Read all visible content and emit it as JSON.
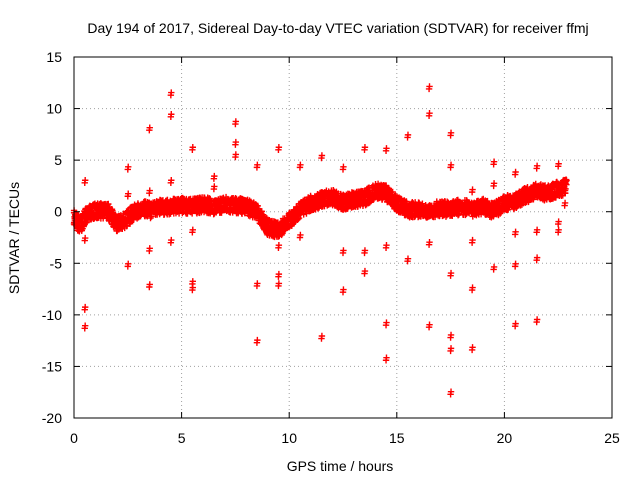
{
  "chart_data": {
    "type": "scatter",
    "title": "Day 194 of 2017, Sidereal Day-to-day VTEC variation (SDTVAR) for receiver ffmj",
    "xlabel": "GPS time / hours",
    "ylabel": "SDTVAR / TECUs",
    "xlim": [
      0,
      25
    ],
    "ylim": [
      -20,
      15
    ],
    "xticks": [
      "0",
      "5",
      "10",
      "15",
      "20",
      "25"
    ],
    "xtick_values": [
      0,
      5,
      10,
      15,
      20,
      25
    ],
    "yticks": [
      "15",
      "10",
      "5",
      "0",
      "-5",
      "-10",
      "-15",
      "-20"
    ],
    "ytick_values": [
      15,
      10,
      5,
      0,
      -5,
      -10,
      -15,
      -20
    ],
    "grid": true,
    "marker": "+",
    "color": "#ff0000",
    "series": [
      {
        "name": "SDTVAR",
        "band_profile": [
          [
            0.0,
            -0.6
          ],
          [
            0.3,
            -1.4
          ],
          [
            0.5,
            -0.5
          ],
          [
            0.8,
            0.0
          ],
          [
            1.2,
            0.1
          ],
          [
            1.6,
            0.0
          ],
          [
            2.0,
            -1.2
          ],
          [
            2.4,
            -0.8
          ],
          [
            2.8,
            0.0
          ],
          [
            3.2,
            0.3
          ],
          [
            3.6,
            0.1
          ],
          [
            4.0,
            0.4
          ],
          [
            4.5,
            0.5
          ],
          [
            5.0,
            0.6
          ],
          [
            5.5,
            0.5
          ],
          [
            6.0,
            0.7
          ],
          [
            6.5,
            0.5
          ],
          [
            7.0,
            0.7
          ],
          [
            7.5,
            0.6
          ],
          [
            8.0,
            0.5
          ],
          [
            8.5,
            0.0
          ],
          [
            9.0,
            -1.5
          ],
          [
            9.5,
            -1.8
          ],
          [
            10.0,
            -0.9
          ],
          [
            10.5,
            0.2
          ],
          [
            11.0,
            0.8
          ],
          [
            11.5,
            1.2
          ],
          [
            12.0,
            1.4
          ],
          [
            12.5,
            0.9
          ],
          [
            13.0,
            1.2
          ],
          [
            13.5,
            1.3
          ],
          [
            14.0,
            2.0
          ],
          [
            14.5,
            1.8
          ],
          [
            15.0,
            0.8
          ],
          [
            15.5,
            0.2
          ],
          [
            16.0,
            0.2
          ],
          [
            16.5,
            0.1
          ],
          [
            17.0,
            0.3
          ],
          [
            17.5,
            0.2
          ],
          [
            18.0,
            0.5
          ],
          [
            18.5,
            0.2
          ],
          [
            19.0,
            0.5
          ],
          [
            19.5,
            0.1
          ],
          [
            20.0,
            0.8
          ],
          [
            20.5,
            1.0
          ],
          [
            21.0,
            1.6
          ],
          [
            21.5,
            2.0
          ],
          [
            22.0,
            1.8
          ],
          [
            22.5,
            2.2
          ],
          [
            22.9,
            2.4
          ]
        ],
        "outliers": [
          [
            0.5,
            2.8
          ],
          [
            0.5,
            -2.8
          ],
          [
            0.5,
            -9.5
          ],
          [
            0.5,
            -11.3
          ],
          [
            2.5,
            4.1
          ],
          [
            2.5,
            1.5
          ],
          [
            2.5,
            -5.3
          ],
          [
            3.5,
            7.9
          ],
          [
            3.5,
            1.8
          ],
          [
            3.5,
            -3.8
          ],
          [
            3.5,
            -7.3
          ],
          [
            4.5,
            11.3
          ],
          [
            4.5,
            9.2
          ],
          [
            4.5,
            2.8
          ],
          [
            4.5,
            -3.0
          ],
          [
            5.5,
            6.0
          ],
          [
            5.5,
            -2.0
          ],
          [
            5.5,
            -7.0
          ],
          [
            5.5,
            -7.6
          ],
          [
            6.5,
            3.2
          ],
          [
            6.5,
            2.2
          ],
          [
            7.5,
            8.5
          ],
          [
            7.5,
            6.5
          ],
          [
            7.5,
            5.3
          ],
          [
            8.5,
            4.3
          ],
          [
            8.5,
            -7.2
          ],
          [
            8.5,
            -12.7
          ],
          [
            9.5,
            6.0
          ],
          [
            9.5,
            -3.5
          ],
          [
            9.5,
            -6.3
          ],
          [
            9.5,
            -7.2
          ],
          [
            10.5,
            4.3
          ],
          [
            10.5,
            -2.5
          ],
          [
            11.5,
            5.2
          ],
          [
            11.5,
            -12.3
          ],
          [
            12.5,
            4.1
          ],
          [
            12.5,
            -4.0
          ],
          [
            12.5,
            -7.8
          ],
          [
            13.5,
            6.0
          ],
          [
            13.5,
            -4.0
          ],
          [
            13.5,
            -6.0
          ],
          [
            14.5,
            5.9
          ],
          [
            14.5,
            -3.5
          ],
          [
            14.5,
            -11.0
          ],
          [
            14.5,
            -14.4
          ],
          [
            15.5,
            7.2
          ],
          [
            15.5,
            -4.8
          ],
          [
            16.5,
            11.9
          ],
          [
            16.5,
            9.3
          ],
          [
            16.5,
            -3.2
          ],
          [
            16.5,
            -11.2
          ],
          [
            17.5,
            7.4
          ],
          [
            17.5,
            4.3
          ],
          [
            17.5,
            -6.2
          ],
          [
            17.5,
            -12.2
          ],
          [
            17.5,
            -13.5
          ],
          [
            17.5,
            -17.7
          ],
          [
            18.5,
            1.9
          ],
          [
            18.5,
            -3.0
          ],
          [
            18.5,
            -7.6
          ],
          [
            18.5,
            -13.4
          ],
          [
            19.5,
            4.6
          ],
          [
            19.5,
            2.5
          ],
          [
            19.5,
            -5.6
          ],
          [
            20.5,
            3.6
          ],
          [
            20.5,
            -2.2
          ],
          [
            20.5,
            -5.3
          ],
          [
            20.5,
            -11.1
          ],
          [
            21.5,
            4.2
          ],
          [
            21.5,
            -2.0
          ],
          [
            21.5,
            -4.7
          ],
          [
            21.5,
            -10.7
          ],
          [
            22.5,
            4.4
          ],
          [
            22.5,
            -1.2
          ],
          [
            22.5,
            -2.0
          ],
          [
            22.8,
            0.6
          ],
          [
            22.8,
            1.8
          ]
        ]
      }
    ]
  }
}
